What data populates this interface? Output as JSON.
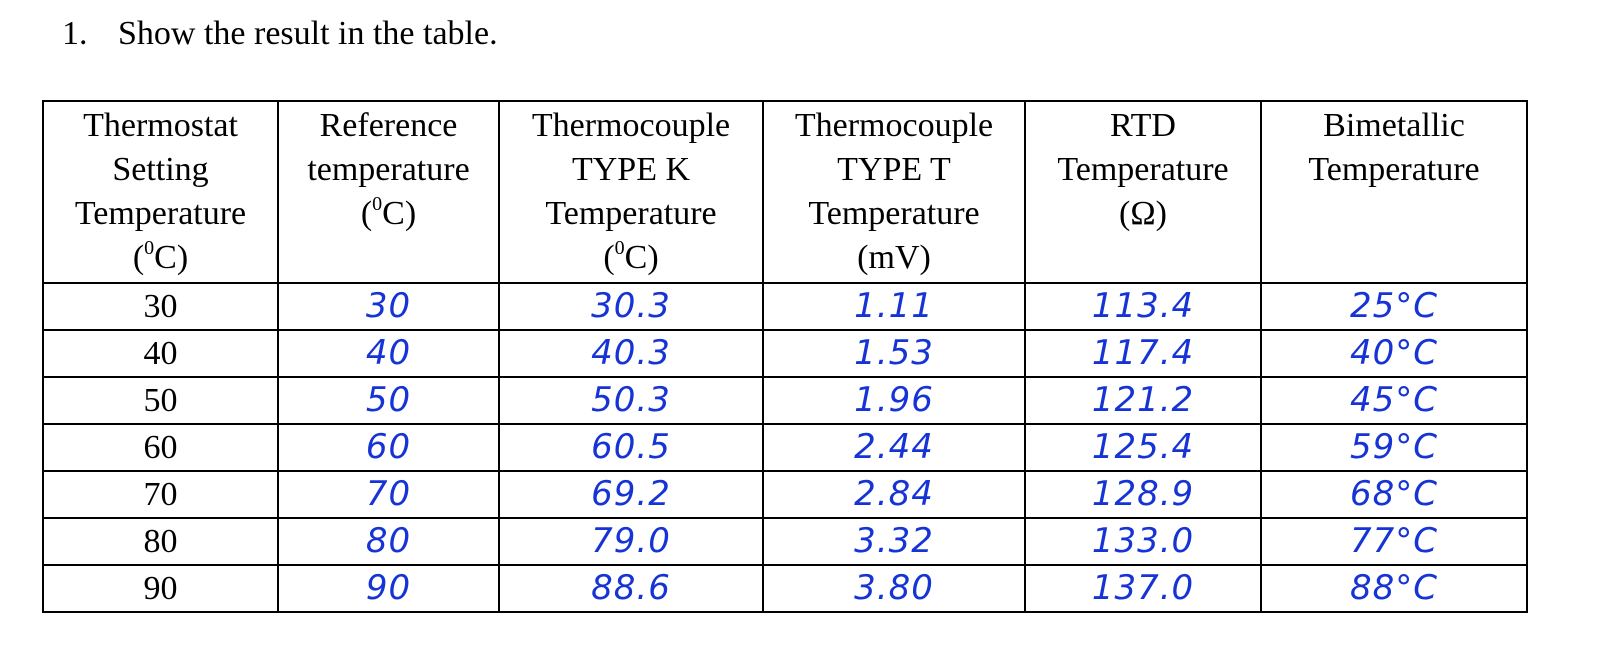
{
  "heading": {
    "number": "1.",
    "text": "Show the result in the table."
  },
  "table": {
    "columns": [
      {
        "lines": [
          "Thermostat",
          "Setting",
          "Temperature"
        ],
        "unit_pre": "(",
        "unit_sup": "0",
        "unit_post": "C)"
      },
      {
        "lines": [
          "Reference",
          "temperature"
        ],
        "unit_pre": "(",
        "unit_sup": "0",
        "unit_post": "C)"
      },
      {
        "lines": [
          "Thermocouple",
          "TYPE K",
          "Temperature"
        ],
        "unit_pre": "(",
        "unit_sup": "0",
        "unit_post": "C)"
      },
      {
        "lines": [
          "Thermocouple",
          "TYPE T",
          "Temperature",
          "(mV)"
        ]
      },
      {
        "lines": [
          "RTD",
          "Temperature",
          "(Ω)"
        ]
      },
      {
        "lines": [
          "Bimetallic",
          "Temperature"
        ]
      }
    ],
    "rows": [
      [
        "30",
        "30",
        "30.3",
        "1.11",
        "113.4",
        "25°C"
      ],
      [
        "40",
        "40",
        "40.3",
        "1.53",
        "117.4",
        "40°C"
      ],
      [
        "50",
        "50",
        "50.3",
        "1.96",
        "121.2",
        "45°C"
      ],
      [
        "60",
        "60",
        "60.5",
        "2.44",
        "125.4",
        "59°C"
      ],
      [
        "70",
        "70",
        "69.2",
        "2.84",
        "128.9",
        "68°C"
      ],
      [
        "80",
        "80",
        "79.0",
        "3.32",
        "133.0",
        "77°C"
      ],
      [
        "90",
        "90",
        "88.6",
        "3.80",
        "137.0",
        "88°C"
      ]
    ]
  }
}
